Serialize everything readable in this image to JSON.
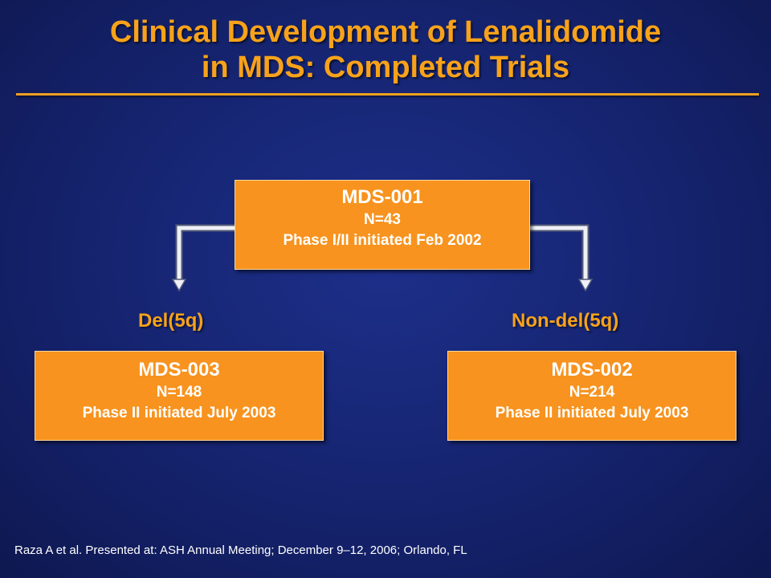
{
  "title": {
    "line1": "Clinical Development of Lenalidomide",
    "line2": "in MDS: Completed Trials"
  },
  "trials": {
    "top": {
      "name": "MDS-001",
      "n": "N=43",
      "phase": "Phase I/II initiated Feb 2002"
    },
    "left": {
      "name": "MDS-003",
      "n": "N=148",
      "phase": "Phase II initiated July 2003"
    },
    "right": {
      "name": "MDS-002",
      "n": "N=214",
      "phase": "Phase II initiated July 2003"
    }
  },
  "branches": {
    "left": "Del(5q)",
    "right": "Non-del(5q)"
  },
  "footnote": "Raza A et al. Presented at: ASH Annual Meeting; December 9–12, 2006; Orlando, FL",
  "colors": {
    "accent": "#f7a21a",
    "box": "#f7931e",
    "background": "#15236e"
  }
}
